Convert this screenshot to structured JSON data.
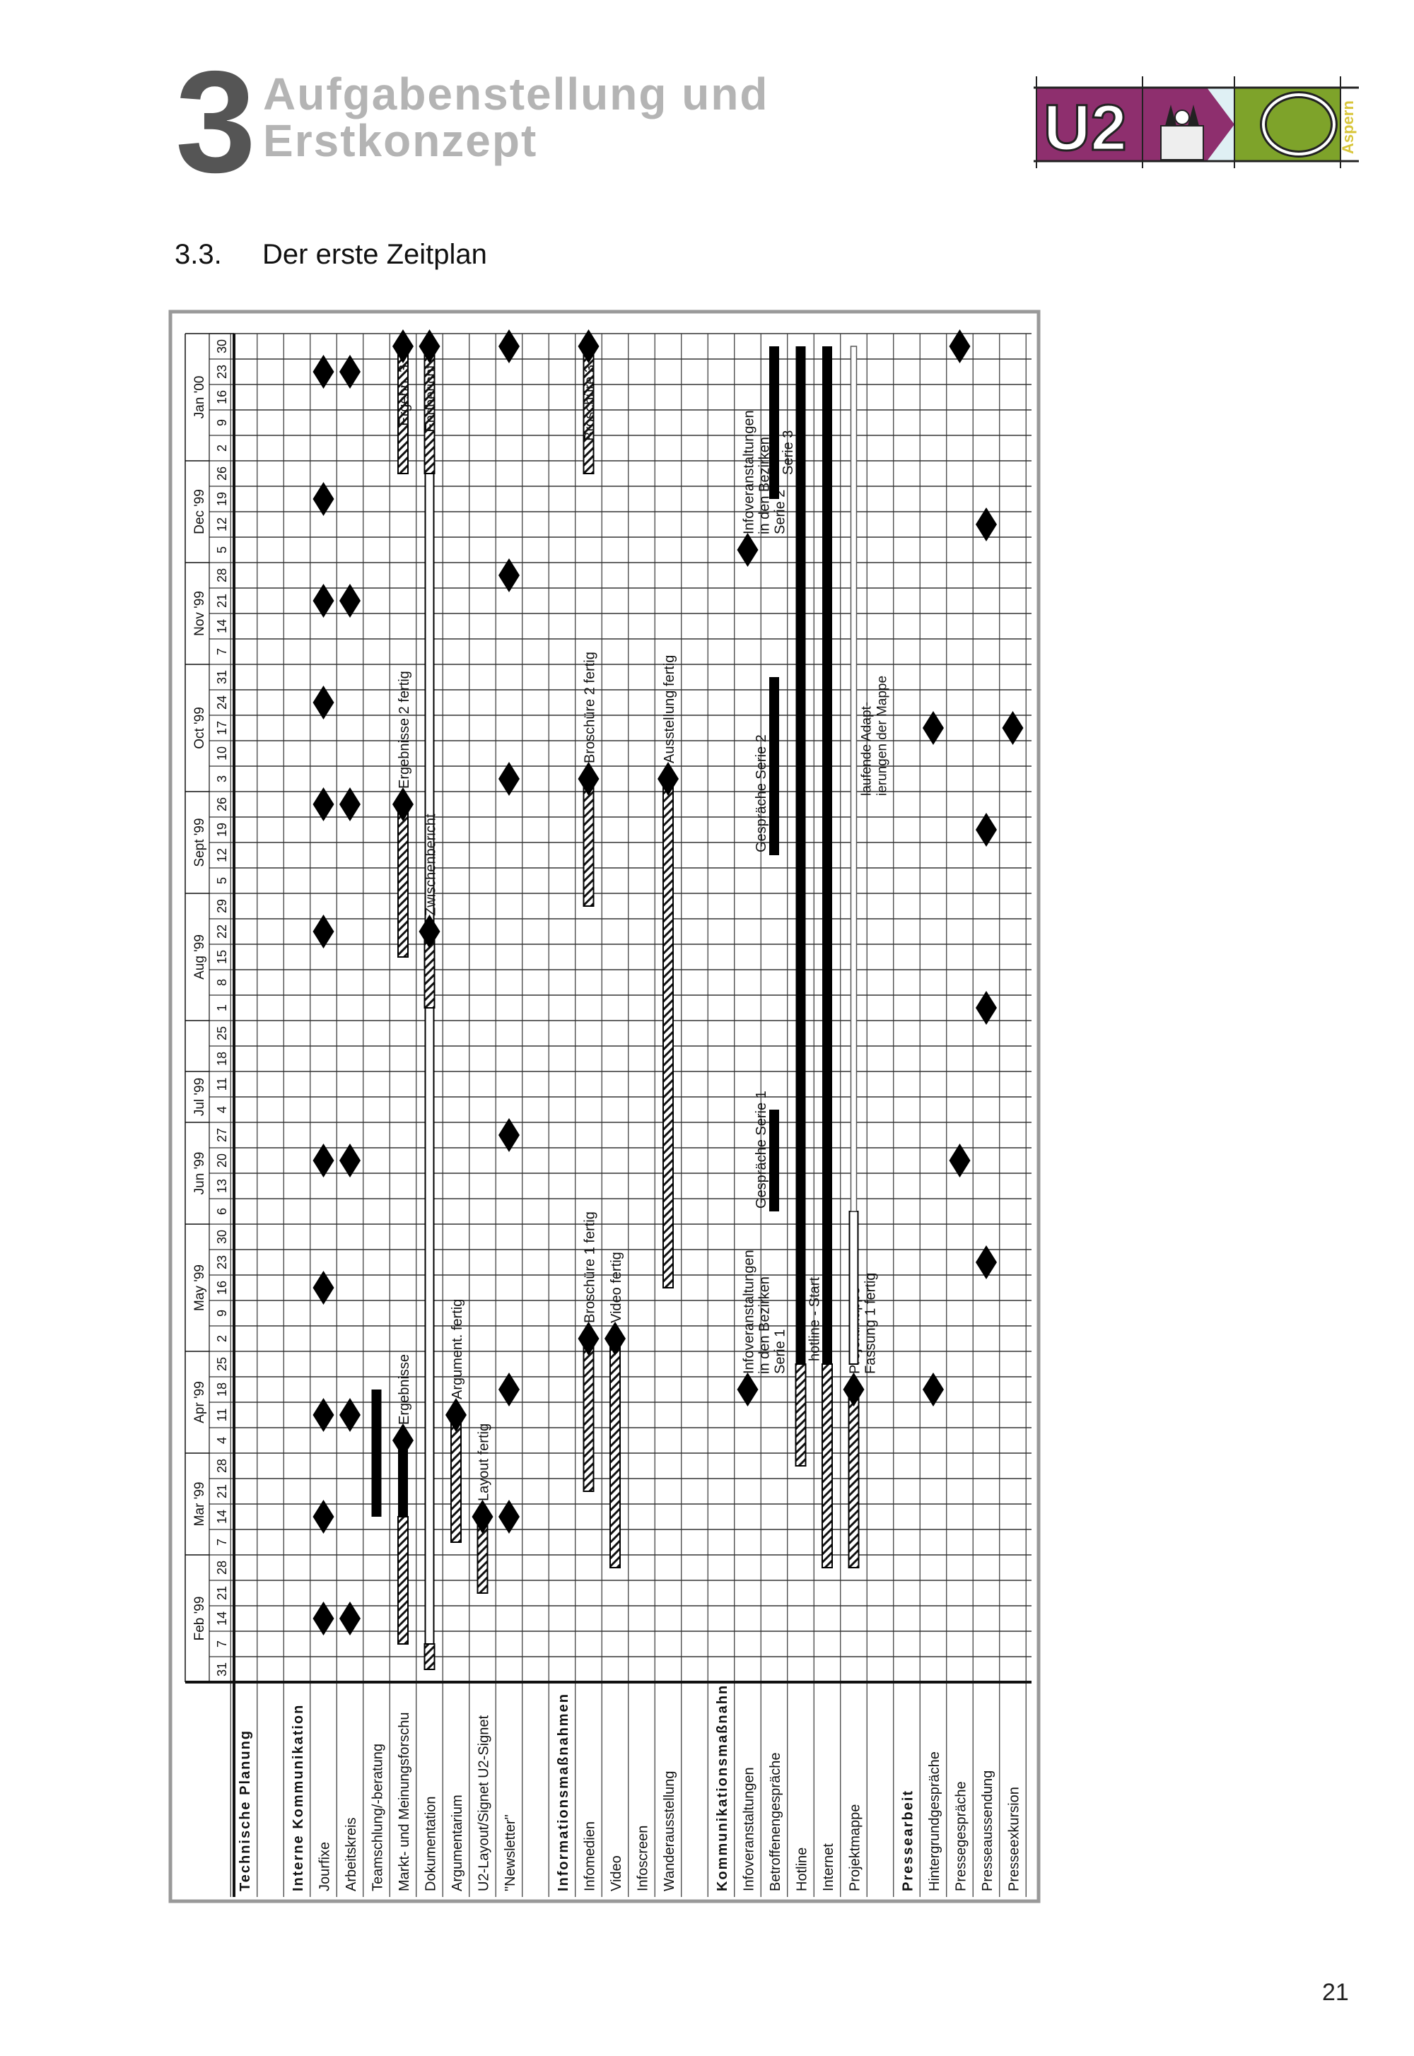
{
  "header": {
    "chapter_number": "3",
    "chapter_title_line1": "Aufgabenstellung und",
    "chapter_title_line2": "Erstkonzept",
    "logo": {
      "main_text": "U2",
      "side_text": "Aspern",
      "colors": {
        "purple": "#8e2f6e",
        "green": "#7ea32a",
        "yellow": "#d8c53a"
      }
    }
  },
  "section": {
    "number": "3.3.",
    "title": "Der erste Zeitplan"
  },
  "page_number": "21",
  "schedule": {
    "months": [
      {
        "label": "Feb '99",
        "span": 5
      },
      {
        "label": "Mar '99",
        "span": 4
      },
      {
        "label": "Apr '99",
        "span": 4
      },
      {
        "label": "May '99",
        "span": 5
      },
      {
        "label": "Jun '99",
        "span": 4
      },
      {
        "label": "Jul '99",
        "span": 2
      },
      {
        "label": "",
        "span": 2
      },
      {
        "label": "Aug '99",
        "span": 5
      },
      {
        "label": "Sept '99",
        "span": 4
      },
      {
        "label": "Oct '99",
        "span": 5
      },
      {
        "label": "Nov '99",
        "span": 4
      },
      {
        "label": "Dec '99",
        "span": 4
      },
      {
        "label": "Jan '00",
        "span": 5
      }
    ],
    "weeks": [
      {
        "day": "31",
        "date": "1999-01-31"
      },
      {
        "day": "7",
        "date": "1999-02-07"
      },
      {
        "day": "14",
        "date": "1999-02-14"
      },
      {
        "day": "21",
        "date": "1999-02-21"
      },
      {
        "day": "28",
        "date": "1999-02-28"
      },
      {
        "day": "7",
        "date": "1999-03-07"
      },
      {
        "day": "14",
        "date": "1999-03-14"
      },
      {
        "day": "21",
        "date": "1999-03-21"
      },
      {
        "day": "28",
        "date": "1999-03-28"
      },
      {
        "day": "4",
        "date": "1999-04-04"
      },
      {
        "day": "11",
        "date": "1999-04-11"
      },
      {
        "day": "18",
        "date": "1999-04-18"
      },
      {
        "day": "25",
        "date": "1999-04-25"
      },
      {
        "day": "2",
        "date": "1999-05-02"
      },
      {
        "day": "9",
        "date": "1999-05-09"
      },
      {
        "day": "16",
        "date": "1999-05-16"
      },
      {
        "day": "23",
        "date": "1999-05-23"
      },
      {
        "day": "30",
        "date": "1999-05-30"
      },
      {
        "day": "6",
        "date": "1999-06-06"
      },
      {
        "day": "13",
        "date": "1999-06-13"
      },
      {
        "day": "20",
        "date": "1999-06-20"
      },
      {
        "day": "27",
        "date": "1999-06-27"
      },
      {
        "day": "4",
        "date": "1999-07-04"
      },
      {
        "day": "11",
        "date": "1999-07-11"
      },
      {
        "day": "18",
        "date": "1999-07-18"
      },
      {
        "day": "25",
        "date": "1999-07-25"
      },
      {
        "day": "1",
        "date": "1999-08-01"
      },
      {
        "day": "8",
        "date": "1999-08-08"
      },
      {
        "day": "15",
        "date": "1999-08-15"
      },
      {
        "day": "22",
        "date": "1999-08-22"
      },
      {
        "day": "29",
        "date": "1999-08-29"
      },
      {
        "day": "5",
        "date": "1999-09-05"
      },
      {
        "day": "12",
        "date": "1999-09-12"
      },
      {
        "day": "19",
        "date": "1999-09-19"
      },
      {
        "day": "26",
        "date": "1999-09-26"
      },
      {
        "day": "3",
        "date": "1999-10-03"
      },
      {
        "day": "10",
        "date": "1999-10-10"
      },
      {
        "day": "17",
        "date": "1999-10-17"
      },
      {
        "day": "24",
        "date": "1999-10-24"
      },
      {
        "day": "31",
        "date": "1999-10-31"
      },
      {
        "day": "7",
        "date": "1999-11-07"
      },
      {
        "day": "14",
        "date": "1999-11-14"
      },
      {
        "day": "21",
        "date": "1999-11-21"
      },
      {
        "day": "28",
        "date": "1999-11-28"
      },
      {
        "day": "5",
        "date": "1999-12-05"
      },
      {
        "day": "12",
        "date": "1999-12-12"
      },
      {
        "day": "19",
        "date": "1999-12-19"
      },
      {
        "day": "26",
        "date": "1999-12-26"
      },
      {
        "day": "2",
        "date": "2000-01-02"
      },
      {
        "day": "9",
        "date": "2000-01-09"
      },
      {
        "day": "16",
        "date": "2000-01-16"
      },
      {
        "day": "23",
        "date": "2000-01-23"
      },
      {
        "day": "30",
        "date": "2000-01-30"
      }
    ],
    "rows": [
      {
        "label": "Technische  Planung",
        "group": true,
        "items": []
      },
      {
        "label": "",
        "items": []
      },
      {
        "label": "Interne  Kommunikation",
        "group": true,
        "items": []
      },
      {
        "label": "Jourfixe",
        "items": [
          {
            "type": "milestone",
            "date": "1999-02-14"
          },
          {
            "type": "milestone",
            "date": "1999-03-14"
          },
          {
            "type": "milestone",
            "date": "1999-04-11"
          },
          {
            "type": "milestone",
            "date": "1999-05-16"
          },
          {
            "type": "milestone",
            "date": "1999-06-20"
          },
          {
            "type": "milestone",
            "date": "1999-08-22"
          },
          {
            "type": "milestone",
            "date": "1999-09-26"
          },
          {
            "type": "milestone",
            "date": "1999-10-24"
          },
          {
            "type": "milestone",
            "date": "1999-11-21"
          },
          {
            "type": "milestone",
            "date": "1999-12-19"
          },
          {
            "type": "milestone",
            "date": "2000-01-23"
          }
        ]
      },
      {
        "label": "Arbeitskreis",
        "items": [
          {
            "type": "milestone",
            "date": "1999-02-14"
          },
          {
            "type": "milestone",
            "date": "1999-04-11"
          },
          {
            "type": "milestone",
            "date": "1999-06-20"
          },
          {
            "type": "milestone",
            "date": "1999-09-26"
          },
          {
            "type": "milestone",
            "date": "1999-11-21"
          },
          {
            "type": "milestone",
            "date": "2000-01-23"
          }
        ]
      },
      {
        "label": "Teamschlung/-beratung",
        "items": [
          {
            "type": "solid",
            "start": "1999-03-14",
            "end": "1999-04-18"
          }
        ]
      },
      {
        "label": "Markt- und Meinungsforschu",
        "items": [
          {
            "type": "hatched",
            "start": "1999-02-07",
            "end": "1999-03-14"
          },
          {
            "type": "solid",
            "start": "1999-03-14",
            "end": "1999-04-04"
          },
          {
            "type": "milestone",
            "date": "1999-04-04",
            "label": [
              "Ergebnisse"
            ]
          },
          {
            "type": "hatched",
            "start": "1999-08-15",
            "end": "1999-09-26"
          },
          {
            "type": "milestone",
            "date": "1999-09-26",
            "label": [
              "Ergebnisse 2 fertig"
            ]
          },
          {
            "type": "hatched",
            "start": "1999-12-26",
            "end": "2000-01-30"
          },
          {
            "type": "milestone",
            "date": "2000-01-30",
            "label": [
              "Ergebn. 3"
            ]
          }
        ]
      },
      {
        "label": "Dokumentation",
        "items": [
          {
            "type": "hatched",
            "start": "1999-01-31",
            "end": "1999-02-07"
          },
          {
            "type": "outline",
            "start": "1999-02-07",
            "end": "2000-01-30"
          },
          {
            "type": "hatched",
            "start": "1999-08-01",
            "end": "1999-08-22"
          },
          {
            "type": "milestone",
            "date": "1999-08-22",
            "label": [
              "Zwischenbericht"
            ]
          },
          {
            "type": "hatched",
            "start": "1999-12-26",
            "end": "2000-01-30"
          },
          {
            "type": "milestone",
            "date": "2000-01-30",
            "label": [
              "Endbericht"
            ]
          }
        ]
      },
      {
        "label": "Argumentarium",
        "items": [
          {
            "type": "hatched",
            "start": "1999-03-07",
            "end": "1999-04-11"
          },
          {
            "type": "milestone",
            "date": "1999-04-11",
            "label": [
              "Argument.  fertig"
            ]
          }
        ]
      },
      {
        "label": "U2-Layout/Signet U2-Signet",
        "items": [
          {
            "type": "hatched",
            "start": "1999-02-21",
            "end": "1999-03-14"
          },
          {
            "type": "milestone",
            "date": "1999-03-14",
            "label": [
              "Layout  fertig"
            ]
          }
        ]
      },
      {
        "label": "\"Newsletter\"",
        "items": [
          {
            "type": "milestone",
            "date": "1999-03-14"
          },
          {
            "type": "milestone",
            "date": "1999-04-18"
          },
          {
            "type": "milestone",
            "date": "1999-06-27"
          },
          {
            "type": "milestone",
            "date": "1999-10-03"
          },
          {
            "type": "milestone",
            "date": "1999-11-28"
          },
          {
            "type": "milestone",
            "date": "2000-01-30"
          }
        ]
      },
      {
        "label": "",
        "items": []
      },
      {
        "label": "Informationsmaßnahmen",
        "group": true,
        "items": []
      },
      {
        "label": "Infomedien",
        "items": [
          {
            "type": "hatched",
            "start": "1999-03-21",
            "end": "1999-05-02"
          },
          {
            "type": "milestone",
            "date": "1999-05-02",
            "label": [
              "Broschüre  1  fertig"
            ]
          },
          {
            "type": "hatched",
            "start": "1999-08-29",
            "end": "1999-10-03"
          },
          {
            "type": "milestone",
            "date": "1999-10-03",
            "label": [
              "Broschüre  2  fertig"
            ]
          },
          {
            "type": "hatched",
            "start": "1999-12-26",
            "end": "2000-01-30"
          },
          {
            "type": "milestone",
            "date": "2000-01-30",
            "label": [
              "Broschüre  3"
            ]
          }
        ]
      },
      {
        "label": "Video",
        "items": [
          {
            "type": "hatched",
            "start": "1999-02-28",
            "end": "1999-05-02"
          },
          {
            "type": "milestone",
            "date": "1999-05-02",
            "label": [
              "Video  fertig"
            ]
          }
        ]
      },
      {
        "label": "Infoscreen",
        "items": []
      },
      {
        "label": "Wanderausstellung",
        "items": [
          {
            "type": "hatched",
            "start": "1999-05-16",
            "end": "1999-10-03"
          },
          {
            "type": "milestone",
            "date": "1999-10-03",
            "label": [
              "Ausstellung  fertig"
            ]
          }
        ]
      },
      {
        "label": "",
        "items": []
      },
      {
        "label": "Kommunikationsmaßnahn",
        "group": true,
        "items": []
      },
      {
        "label": "Infoveranstaltungen",
        "items": [
          {
            "type": "milestone",
            "date": "1999-04-18",
            "label": [
              "Infoveranstaltungen",
              "in den Bezirken",
              "Serie 1"
            ]
          },
          {
            "type": "milestone",
            "date": "1999-12-05",
            "label": [
              "Infoveranstaltungen",
              "in den Bezirken",
              "Serie 2"
            ]
          }
        ]
      },
      {
        "label": "Betroffenengespräche",
        "items": [
          {
            "type": "solid",
            "start": "1999-06-06",
            "end": "1999-07-04",
            "label": "Gespräche Serie 1"
          },
          {
            "type": "solid",
            "start": "1999-09-12",
            "end": "1999-10-31",
            "label": "Gespräche Serie 2"
          },
          {
            "type": "solid",
            "start": "1999-12-19",
            "end": "2000-01-30",
            "label": "Serie 3"
          }
        ]
      },
      {
        "label": "Hotline",
        "items": [
          {
            "type": "hatched",
            "start": "1999-03-28",
            "end": "1999-04-25"
          },
          {
            "type": "solid",
            "start": "1999-04-25",
            "end": "2000-01-30",
            "label": "hotline  -  Start"
          }
        ]
      },
      {
        "label": "Internet",
        "items": [
          {
            "type": "hatched",
            "start": "1999-02-28",
            "end": "1999-04-25"
          },
          {
            "type": "solid",
            "start": "1999-04-25",
            "end": "2000-01-30"
          }
        ]
      },
      {
        "label": "Projektmappe",
        "items": [
          {
            "type": "hatched",
            "start": "1999-02-28",
            "end": "1999-04-18"
          },
          {
            "type": "milestone",
            "date": "1999-04-18",
            "label": [
              "Projektmappe -",
              "Fassung 1 fertig"
            ]
          },
          {
            "type": "outline",
            "start": "1999-04-25",
            "end": "1999-06-06"
          },
          {
            "type": "thin",
            "start": "1999-06-06",
            "end": "2000-01-30"
          },
          {
            "type": "note",
            "date": "1999-10-10",
            "label": [
              "laufende Adapt-",
              "ierungen der Mappe"
            ]
          }
        ]
      },
      {
        "label": "",
        "items": []
      },
      {
        "label": "Pressearbeit",
        "group": true,
        "items": []
      },
      {
        "label": "Hintergrundgespräche",
        "items": [
          {
            "type": "milestone",
            "date": "1999-04-18"
          },
          {
            "type": "milestone",
            "date": "1999-10-17"
          }
        ]
      },
      {
        "label": "Pressegespräche",
        "items": [
          {
            "type": "milestone",
            "date": "1999-06-20"
          },
          {
            "type": "milestone",
            "date": "2000-01-30"
          }
        ]
      },
      {
        "label": "Presseaussendung",
        "items": [
          {
            "type": "milestone",
            "date": "1999-05-23"
          },
          {
            "type": "milestone",
            "date": "1999-08-01"
          },
          {
            "type": "milestone",
            "date": "1999-09-19"
          },
          {
            "type": "milestone",
            "date": "1999-12-12"
          }
        ]
      },
      {
        "label": "Presseexkursion",
        "items": [
          {
            "type": "milestone",
            "date": "1999-10-17"
          }
        ]
      }
    ]
  }
}
